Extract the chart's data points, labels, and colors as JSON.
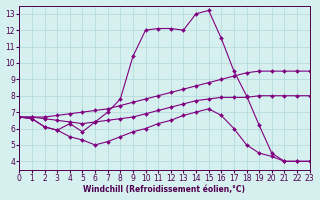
{
  "xlabel": "Windchill (Refroidissement éolien,°C)",
  "bg_color": "#d6f0f0",
  "grid_color": "#b0d8d8",
  "line_color": "#800080",
  "xlim": [
    0,
    23
  ],
  "ylim": [
    3.5,
    13.5
  ],
  "xticks": [
    0,
    1,
    2,
    3,
    4,
    5,
    6,
    7,
    8,
    9,
    10,
    11,
    12,
    13,
    14,
    15,
    16,
    17,
    18,
    19,
    20,
    21,
    22,
    23
  ],
  "yticks": [
    4,
    5,
    6,
    7,
    8,
    9,
    10,
    11,
    12,
    13
  ],
  "series": [
    {
      "x": [
        0,
        1,
        2,
        3,
        4,
        5,
        6,
        7,
        8,
        9,
        10,
        11,
        12,
        13,
        14,
        15,
        16,
        17,
        18,
        19,
        20,
        21,
        22,
        23
      ],
      "y": [
        6.7,
        6.6,
        6.1,
        5.9,
        6.3,
        5.8,
        6.4,
        7.0,
        7.8,
        10.4,
        12.0,
        12.1,
        12.1,
        12.0,
        13.0,
        13.2,
        11.5,
        9.5,
        8.0,
        6.2,
        4.5,
        4.0,
        4.0,
        4.0
      ]
    },
    {
      "x": [
        0,
        1,
        2,
        3,
        4,
        5,
        6,
        7,
        8,
        9,
        10,
        11,
        12,
        13,
        14,
        15,
        16,
        17,
        18,
        19,
        20,
        21,
        22,
        23
      ],
      "y": [
        6.7,
        6.7,
        6.7,
        6.8,
        6.9,
        7.0,
        7.1,
        7.2,
        7.4,
        7.6,
        7.8,
        8.0,
        8.2,
        8.4,
        8.6,
        8.8,
        9.0,
        9.2,
        9.4,
        9.5,
        9.5,
        9.5,
        9.5,
        9.5
      ]
    },
    {
      "x": [
        0,
        1,
        2,
        3,
        4,
        5,
        6,
        7,
        8,
        9,
        10,
        11,
        12,
        13,
        14,
        15,
        16,
        17,
        18,
        19,
        20,
        21,
        22,
        23
      ],
      "y": [
        6.7,
        6.7,
        6.6,
        6.5,
        6.4,
        6.3,
        6.4,
        6.5,
        6.6,
        6.7,
        6.9,
        7.1,
        7.3,
        7.5,
        7.7,
        7.8,
        7.9,
        7.9,
        7.9,
        8.0,
        8.0,
        8.0,
        8.0,
        8.0
      ]
    },
    {
      "x": [
        0,
        1,
        2,
        3,
        4,
        5,
        6,
        7,
        8,
        9,
        10,
        11,
        12,
        13,
        14,
        15,
        16,
        17,
        18,
        19,
        20,
        21,
        22,
        23
      ],
      "y": [
        6.7,
        6.6,
        6.1,
        5.9,
        5.5,
        5.3,
        5.0,
        5.2,
        5.5,
        5.8,
        6.0,
        6.3,
        6.5,
        6.8,
        7.0,
        7.2,
        6.8,
        6.0,
        5.0,
        4.5,
        4.3,
        4.0,
        4.0,
        4.0
      ]
    }
  ]
}
